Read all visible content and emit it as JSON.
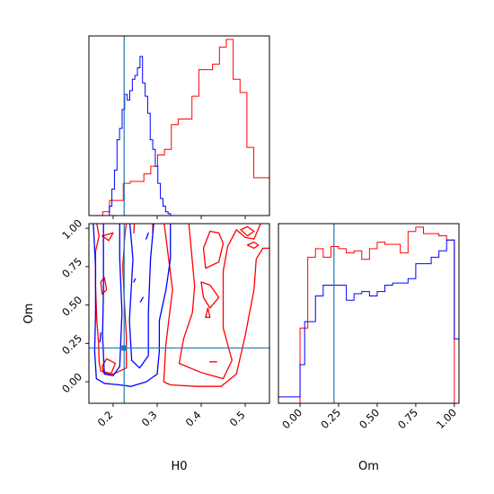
{
  "chart_data": {
    "type": "corner",
    "parameters": [
      "H0",
      "Om"
    ],
    "truth": {
      "H0": 0.225,
      "Om": 0.22
    },
    "series_colors": {
      "red": "#ff0000",
      "blue": "#0000ff",
      "truth": "#1f77b4"
    },
    "panels": [
      {
        "id": "hist-H0",
        "type": "histogram",
        "param": "H0",
        "xlim": [
          0.145,
          0.555
        ],
        "x_ticks": [
          "0.2",
          "0.3",
          "0.4",
          "0.5"
        ],
        "x_tick_values": [
          0.2,
          0.3,
          0.4,
          0.5
        ],
        "show_x_tick_labels": false,
        "series": [
          {
            "color": "red",
            "bins_x": [
              0.145,
              0.1606,
              0.1762,
              0.1918,
              0.2074,
              0.223,
              0.2386,
              0.2542,
              0.2698,
              0.2854,
              0.301,
              0.3166,
              0.3322,
              0.3478,
              0.3634,
              0.379,
              0.3946,
              0.4102,
              0.4258,
              0.4414,
              0.457,
              0.4726,
              0.4882,
              0.5038,
              0.5194,
              0.535,
              0.555
            ],
            "counts": [
              0,
              0,
              2,
              8,
              8,
              17,
              18,
              18,
              22,
              26,
              32,
              35,
              48,
              51,
              51,
              63,
              77,
              77,
              80,
              89,
              93,
              72,
              65,
              36,
              20,
              20
            ]
          },
          {
            "color": "blue",
            "bins_x": [
              0.145,
              0.1508,
              0.1566,
              0.1624,
              0.1682,
              0.174,
              0.1798,
              0.1856,
              0.1914,
              0.1972,
              0.203,
              0.2088,
              0.2146,
              0.2204,
              0.2262,
              0.232,
              0.2378,
              0.2436,
              0.2494,
              0.2552,
              0.261,
              0.2668,
              0.2726,
              0.2784,
              0.2842,
              0.29,
              0.2958,
              0.3016,
              0.3074,
              0.3132,
              0.319,
              0.3248,
              0.3306,
              0.3364,
              0.555
            ],
            "counts": [
              0,
              0,
              0,
              0,
              0,
              0,
              0,
              0,
              5,
              14,
              24,
              40,
              46,
              56,
              64,
              61,
              66,
              72,
              74,
              78,
              84,
              70,
              63,
              54,
              40,
              35,
              26,
              17,
              9,
              5,
              2,
              1,
              0,
              0
            ]
          }
        ]
      },
      {
        "id": "contour-H0-Om",
        "type": "contour",
        "x_param": "H0",
        "y_param": "Om",
        "xlim": [
          0.145,
          0.555
        ],
        "ylim": [
          -0.14,
          1.03
        ],
        "x_ticks": [
          "0.2",
          "0.3",
          "0.4",
          "0.5"
        ],
        "x_tick_values": [
          0.2,
          0.3,
          0.4,
          0.5
        ],
        "y_ticks": [
          "0.00",
          "0.25",
          "0.50",
          "0.75",
          "1.00"
        ],
        "y_tick_values": [
          0.0,
          0.25,
          0.5,
          0.75,
          1.0
        ],
        "xlabel": "H0",
        "ylabel": "Om",
        "contours": [
          {
            "color": "red",
            "points": [
              [
                0.316,
                1.03
              ],
              [
                0.335,
                0.6
              ],
              [
                0.32,
                0.25
              ],
              [
                0.315,
                0.0
              ],
              [
                0.33,
                -0.02
              ],
              [
                0.39,
                -0.03
              ],
              [
                0.445,
                -0.03
              ],
              [
                0.48,
                0.05
              ],
              [
                0.5,
                0.3
              ],
              [
                0.52,
                0.6
              ],
              [
                0.525,
                0.8
              ],
              [
                0.54,
                0.87
              ],
              [
                0.555,
                0.87
              ]
            ]
          },
          {
            "color": "red",
            "points": [
              [
                0.372,
                1.03
              ],
              [
                0.385,
                0.62
              ],
              [
                0.38,
                0.45
              ],
              [
                0.36,
                0.28
              ],
              [
                0.35,
                0.12
              ],
              [
                0.4,
                0.06
              ],
              [
                0.45,
                0.02
              ],
              [
                0.47,
                0.14
              ],
              [
                0.45,
                0.35
              ],
              [
                0.45,
                0.56
              ],
              [
                0.45,
                0.72
              ],
              [
                0.46,
                0.88
              ],
              [
                0.48,
                0.99
              ],
              [
                0.5,
                0.94
              ],
              [
                0.52,
                0.93
              ],
              [
                0.535,
                1.03
              ]
            ]
          },
          {
            "color": "red",
            "points": [
              [
                0.405,
                0.87
              ],
              [
                0.42,
                0.98
              ],
              [
                0.44,
                0.97
              ],
              [
                0.45,
                0.9
              ],
              [
                0.44,
                0.78
              ],
              [
                0.41,
                0.74
              ],
              [
                0.405,
                0.87
              ]
            ]
          },
          {
            "color": "red",
            "points": [
              [
                0.4,
                0.65
              ],
              [
                0.42,
                0.63
              ],
              [
                0.44,
                0.55
              ],
              [
                0.42,
                0.48
              ],
              [
                0.405,
                0.55
              ],
              [
                0.4,
                0.65
              ]
            ]
          },
          {
            "color": "red",
            "points": [
              [
                0.41,
                0.42
              ],
              [
                0.415,
                0.48
              ],
              [
                0.42,
                0.42
              ],
              [
                0.41,
                0.42
              ]
            ]
          },
          {
            "color": "red",
            "points": [
              [
                0.49,
                0.99
              ],
              [
                0.505,
                1.01
              ],
              [
                0.52,
                0.98
              ],
              [
                0.505,
                0.95
              ],
              [
                0.49,
                0.99
              ]
            ]
          },
          {
            "color": "red",
            "points": [
              [
                0.505,
                0.89
              ],
              [
                0.52,
                0.91
              ],
              [
                0.53,
                0.89
              ],
              [
                0.52,
                0.87
              ],
              [
                0.505,
                0.89
              ]
            ]
          },
          {
            "color": "red",
            "points": [
              [
                0.42,
                0.13
              ],
              [
                0.435,
                0.13
              ]
            ]
          },
          {
            "color": "red",
            "points": [
              [
                0.163,
                1.03
              ],
              [
                0.168,
                0.95
              ],
              [
                0.16,
                0.85
              ],
              [
                0.16,
                0.62
              ],
              [
                0.163,
                0.4
              ],
              [
                0.167,
                0.25
              ],
              [
                0.168,
                0.13
              ],
              [
                0.172,
                0.07
              ],
              [
                0.2,
                0.05
              ],
              [
                0.23,
                0.09
              ],
              [
                0.23,
                0.3
              ],
              [
                0.225,
                0.55
              ],
              [
                0.222,
                0.75
              ],
              [
                0.227,
                0.97
              ],
              [
                0.23,
                1.03
              ]
            ]
          },
          {
            "color": "red",
            "points": [
              [
                0.175,
                0.1
              ],
              [
                0.185,
                0.15
              ],
              [
                0.205,
                0.12
              ],
              [
                0.195,
                0.05
              ],
              [
                0.178,
                0.06
              ],
              [
                0.175,
                0.1
              ]
            ]
          },
          {
            "color": "red",
            "points": [
              [
                0.172,
                0.65
              ],
              [
                0.18,
                0.68
              ],
              [
                0.185,
                0.6
              ],
              [
                0.175,
                0.57
              ],
              [
                0.172,
                0.65
              ]
            ]
          },
          {
            "color": "red",
            "points": [
              [
                0.175,
                0.95
              ],
              [
                0.2,
                0.97
              ],
              [
                0.19,
                0.92
              ],
              [
                0.175,
                0.95
              ]
            ]
          },
          {
            "color": "red",
            "points": [
              [
                0.247,
                0.97
              ],
              [
                0.248,
                1.03
              ]
            ]
          },
          {
            "color": "red",
            "points": [
              [
                0.29,
                0.97
              ],
              [
                0.29,
                1.03
              ]
            ]
          },
          {
            "color": "blue",
            "points": [
              [
                0.155,
                1.03
              ],
              [
                0.16,
                0.75
              ],
              [
                0.16,
                0.45
              ],
              [
                0.158,
                0.2
              ],
              [
                0.162,
                0.02
              ],
              [
                0.18,
                -0.01
              ],
              [
                0.215,
                -0.02
              ],
              [
                0.24,
                -0.03
              ],
              [
                0.275,
                0.0
              ],
              [
                0.3,
                0.05
              ],
              [
                0.305,
                0.2
              ],
              [
                0.305,
                0.4
              ],
              [
                0.32,
                0.6
              ],
              [
                0.33,
                0.8
              ],
              [
                0.33,
                0.95
              ],
              [
                0.33,
                1.03
              ]
            ]
          },
          {
            "color": "blue",
            "points": [
              [
                0.178,
                1.03
              ],
              [
                0.178,
                0.6
              ],
              [
                0.176,
                0.3
              ],
              [
                0.18,
                0.05
              ],
              [
                0.2,
                0.04
              ],
              [
                0.215,
                0.1
              ],
              [
                0.22,
                0.45
              ],
              [
                0.215,
                0.8
              ],
              [
                0.215,
                1.03
              ]
            ]
          },
          {
            "color": "blue",
            "points": [
              [
                0.238,
                1.03
              ],
              [
                0.245,
                0.8
              ],
              [
                0.237,
                0.4
              ],
              [
                0.242,
                0.14
              ],
              [
                0.26,
                0.09
              ],
              [
                0.28,
                0.17
              ],
              [
                0.28,
                0.45
              ],
              [
                0.285,
                0.8
              ],
              [
                0.292,
                1.03
              ]
            ]
          },
          {
            "color": "blue",
            "points": [
              [
                0.17,
                0.26
              ],
              [
                0.172,
                0.32
              ]
            ]
          },
          {
            "color": "blue",
            "points": [
              [
                0.247,
                0.65
              ],
              [
                0.25,
                0.67
              ]
            ]
          },
          {
            "color": "blue",
            "points": [
              [
                0.262,
                0.52
              ],
              [
                0.268,
                0.55
              ]
            ]
          },
          {
            "color": "blue",
            "points": [
              [
                0.275,
                0.93
              ],
              [
                0.28,
                0.97
              ]
            ]
          }
        ]
      },
      {
        "id": "hist-Om",
        "type": "histogram",
        "param": "Om",
        "xlim": [
          -0.14,
          1.03
        ],
        "x_ticks": [
          "0.00",
          "0.25",
          "0.50",
          "0.75",
          "1.00"
        ],
        "x_tick_values": [
          0.0,
          0.25,
          0.5,
          0.75,
          1.0
        ],
        "xlabel": "Om",
        "series": [
          {
            "color": "red",
            "bins_x": [
              -0.14,
              0.0,
              0.05,
              0.1,
              0.15,
              0.2,
              0.25,
              0.3,
              0.35,
              0.4,
              0.45,
              0.5,
              0.55,
              0.6,
              0.65,
              0.7,
              0.75,
              0.8,
              0.85,
              0.9,
              0.95,
              1.0,
              1.03
            ],
            "counts": [
              0,
              35,
              68,
              72,
              68,
              73,
              72,
              70,
              71,
              67,
              72,
              75,
              74,
              74,
              70,
              80,
              82,
              79,
              79,
              78,
              76,
              0
            ]
          },
          {
            "color": "blue",
            "bins_x": [
              -0.14,
              -0.07,
              0.0,
              0.03,
              0.05,
              0.1,
              0.15,
              0.2,
              0.25,
              0.3,
              0.35,
              0.4,
              0.45,
              0.5,
              0.55,
              0.6,
              0.65,
              0.7,
              0.75,
              0.8,
              0.85,
              0.9,
              0.95,
              1.0,
              1.03
            ],
            "counts": [
              3,
              3,
              18,
              38,
              38,
              50,
              55,
              55,
              55,
              48,
              51,
              52,
              50,
              52,
              55,
              56,
              56,
              58,
              65,
              65,
              68,
              71,
              76,
              30
            ]
          }
        ]
      }
    ]
  }
}
